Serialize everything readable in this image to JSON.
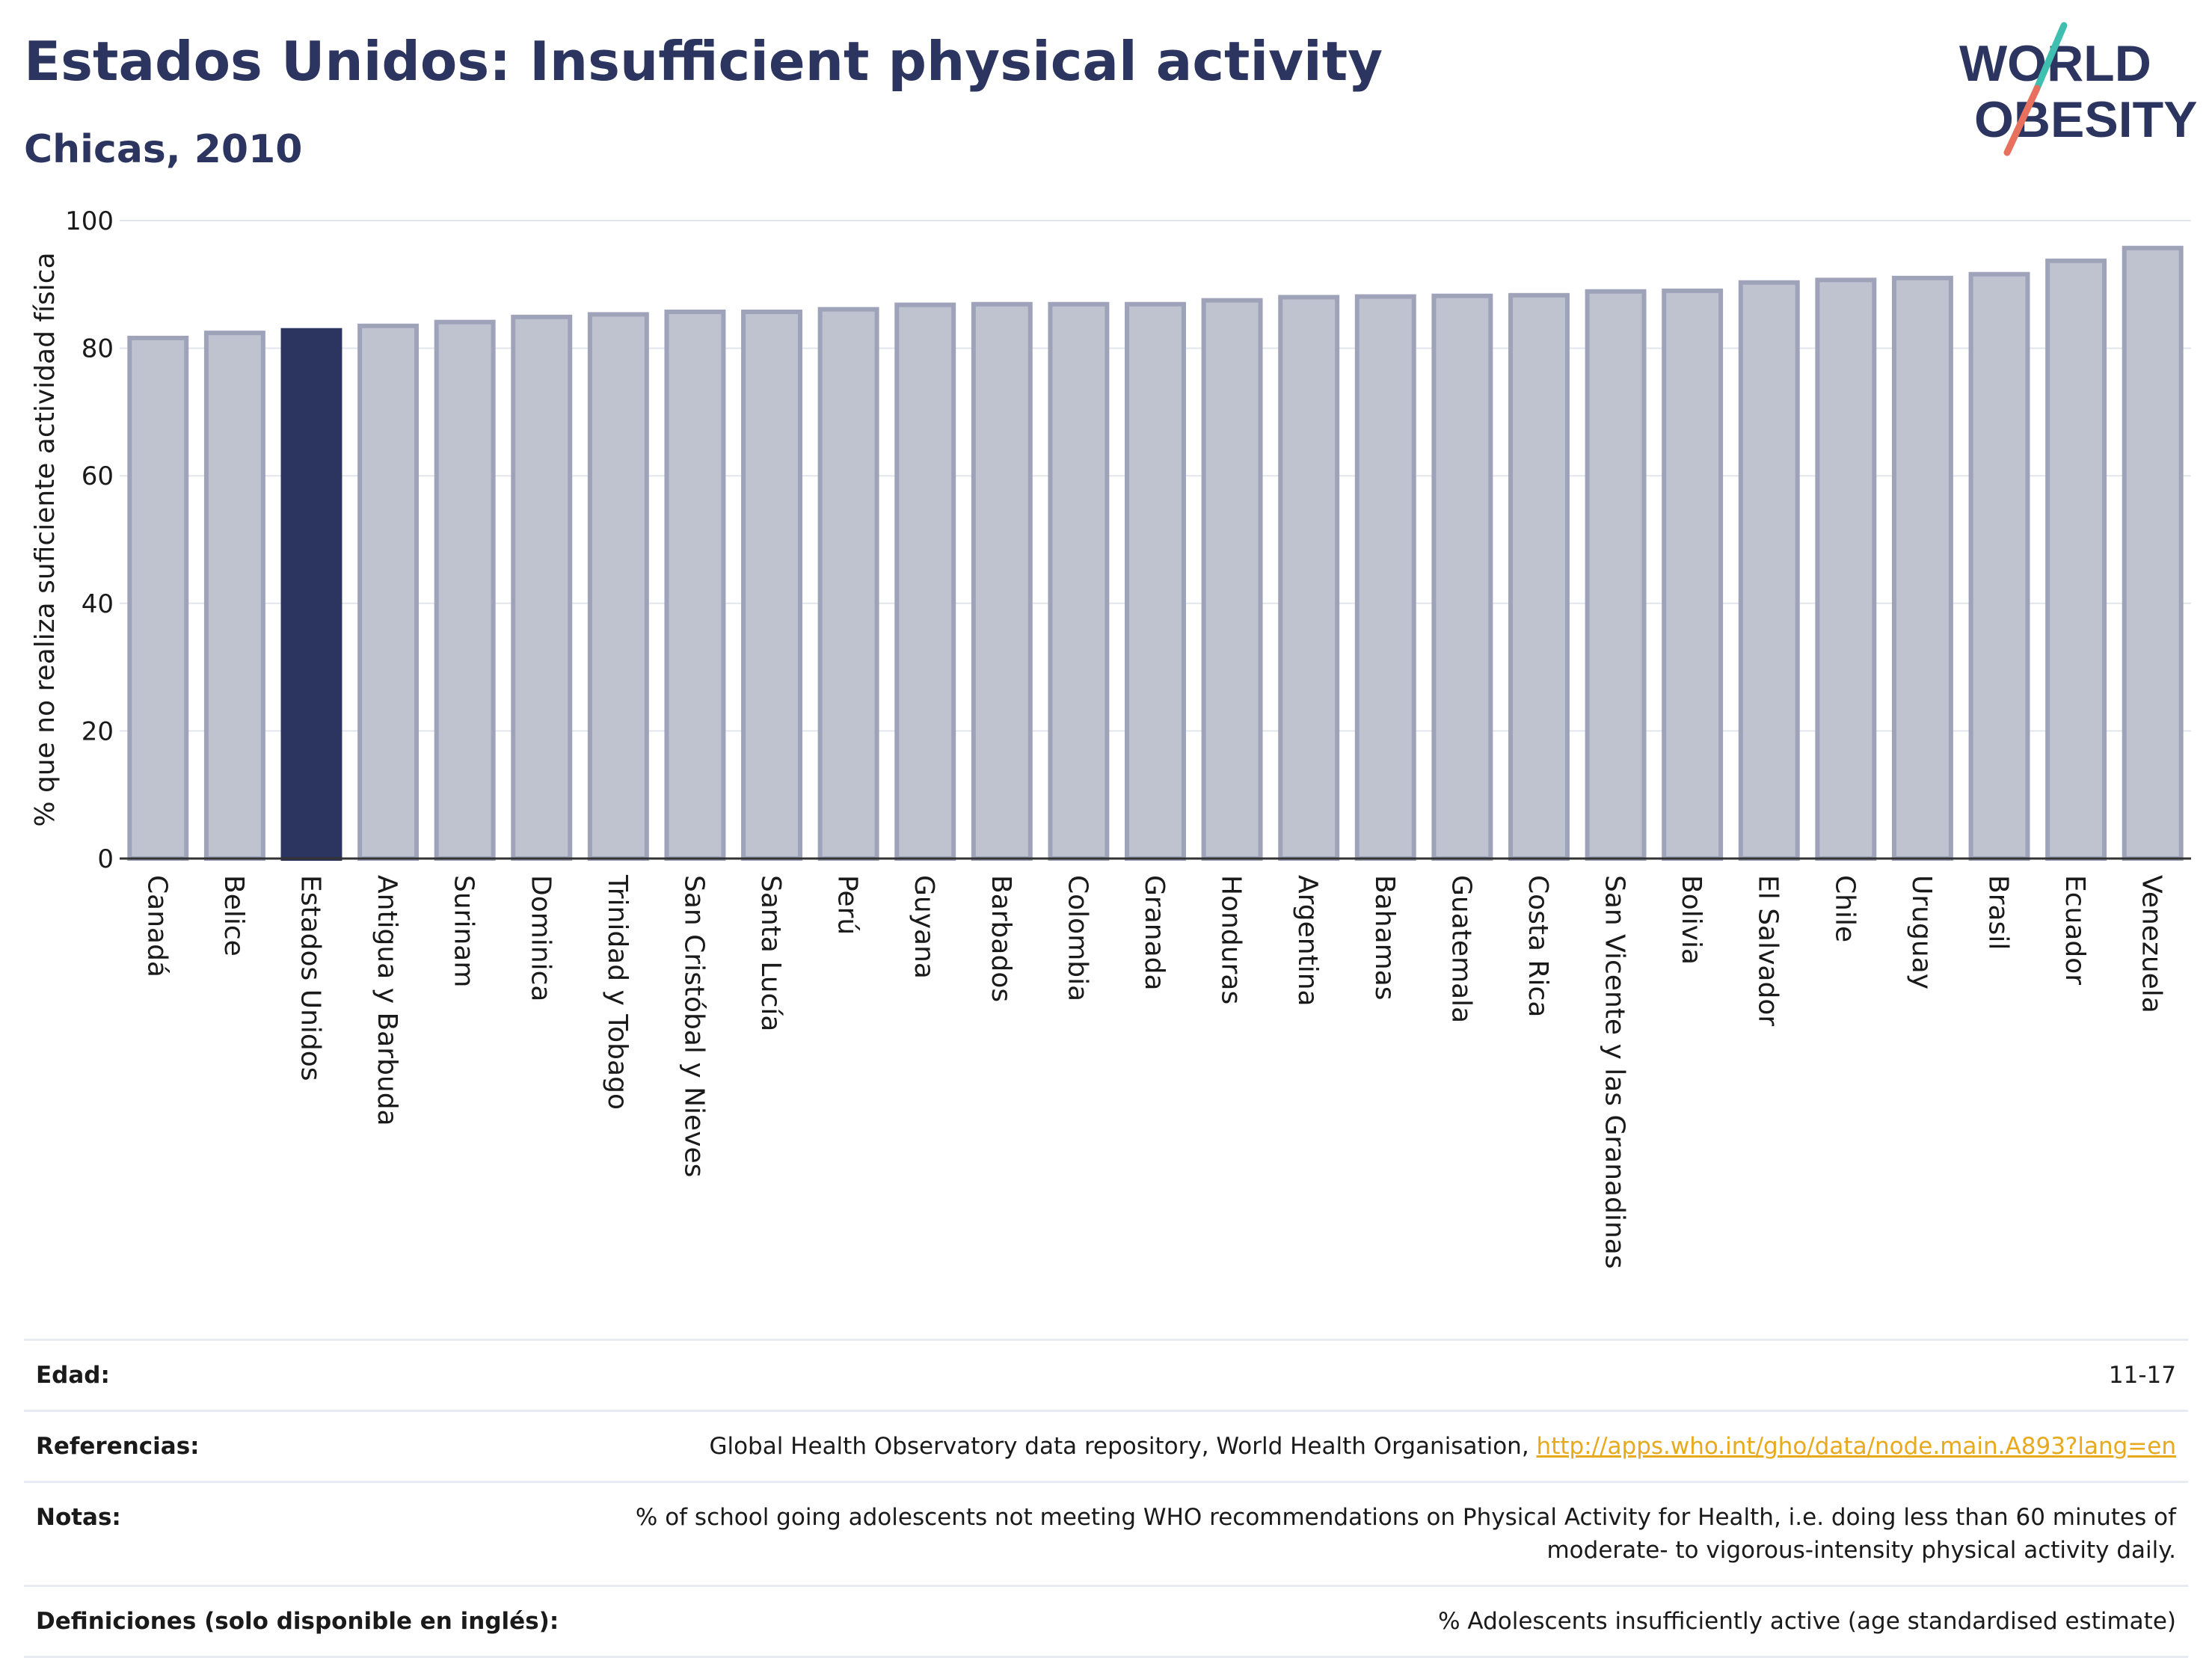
{
  "title": "Estados Unidos: Insufficient physical activity",
  "subtitle": "Chicas, 2010",
  "logo": {
    "line1": "WORLD",
    "line2": "OBESITY"
  },
  "colors": {
    "highlight": "#2b3560",
    "bar": "#bfc2cf",
    "bar_border": "#9ea3b9",
    "title": "#2b3560",
    "link": "#e8a91c"
  },
  "chart_data": {
    "type": "bar",
    "ylabel": "% que no realiza suficiente actividad física",
    "xlabel": "",
    "ylim": [
      0,
      100
    ],
    "yticks": [
      0,
      20,
      40,
      60,
      80,
      100
    ],
    "grid": true,
    "highlight": "Estados Unidos",
    "categories": [
      "Canadá",
      "Belice",
      "Estados Unidos",
      "Antigua y Barbuda",
      "Surinam",
      "Dominica",
      "Trinidad y Tobago",
      "San Cristóbal y Nieves",
      "Santa Lucía",
      "Perú",
      "Guyana",
      "Barbados",
      "Colombia",
      "Granada",
      "Honduras",
      "Argentina",
      "Bahamas",
      "Guatemala",
      "Costa Rica",
      "San Vicente y las Granadinas",
      "Bolivia",
      "El Salvador",
      "Chile",
      "Uruguay",
      "Brasil",
      "Ecuador",
      "Venezuela"
    ],
    "values": [
      81.6,
      82.4,
      82.8,
      83.5,
      84.1,
      84.9,
      85.3,
      85.7,
      85.7,
      86.1,
      86.8,
      86.9,
      86.9,
      86.9,
      87.5,
      88.0,
      88.1,
      88.2,
      88.3,
      88.9,
      89.0,
      90.3,
      90.7,
      91.0,
      91.6,
      93.7,
      95.7
    ]
  },
  "meta": [
    {
      "label": "Edad:",
      "value": "11-17"
    },
    {
      "label": "Referencias:",
      "value": "Global Health Observatory data repository, World Health Organisation, ",
      "link": "http://apps.who.int/gho/data/node.main.A893?lang=en"
    },
    {
      "label": "Notas:",
      "value": "% of school going adolescents not meeting WHO recommendations on Physical Activity for Health, i.e. doing less than 60 minutes of moderate- to vigorous-intensity physical activity daily."
    },
    {
      "label": "Definiciones (solo disponible en inglés):",
      "value": "% Adolescents insufficiently active (age standardised estimate)"
    }
  ]
}
